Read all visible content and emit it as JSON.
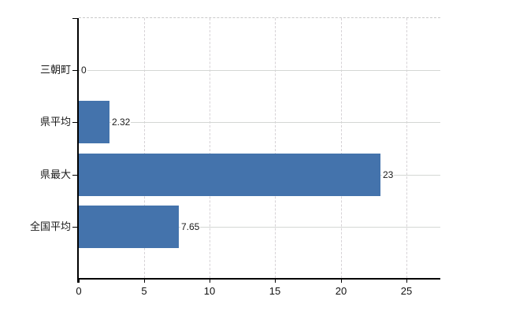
{
  "chart_data": {
    "type": "bar",
    "orientation": "horizontal",
    "title": "",
    "categories": [
      "三朝町",
      "県平均",
      "県最大",
      "全国平均"
    ],
    "values": [
      0,
      2.32,
      23,
      7.65
    ],
    "value_labels": [
      "0",
      "2.32",
      "23",
      "7.65"
    ],
    "x_ticks": [
      0,
      5,
      10,
      15,
      20,
      25
    ],
    "x_tick_labels": [
      "0",
      "5",
      "10",
      "15",
      "20",
      "25"
    ],
    "xlim": [
      0,
      27.6
    ],
    "grid": true,
    "legend": false,
    "bar_color": "#4473ac",
    "grid_color_horizontal": "#d4d7d4",
    "grid_color_vertical": "#d6d2d6",
    "axis_color": "#000000",
    "text_color": "#1a1a1a"
  }
}
